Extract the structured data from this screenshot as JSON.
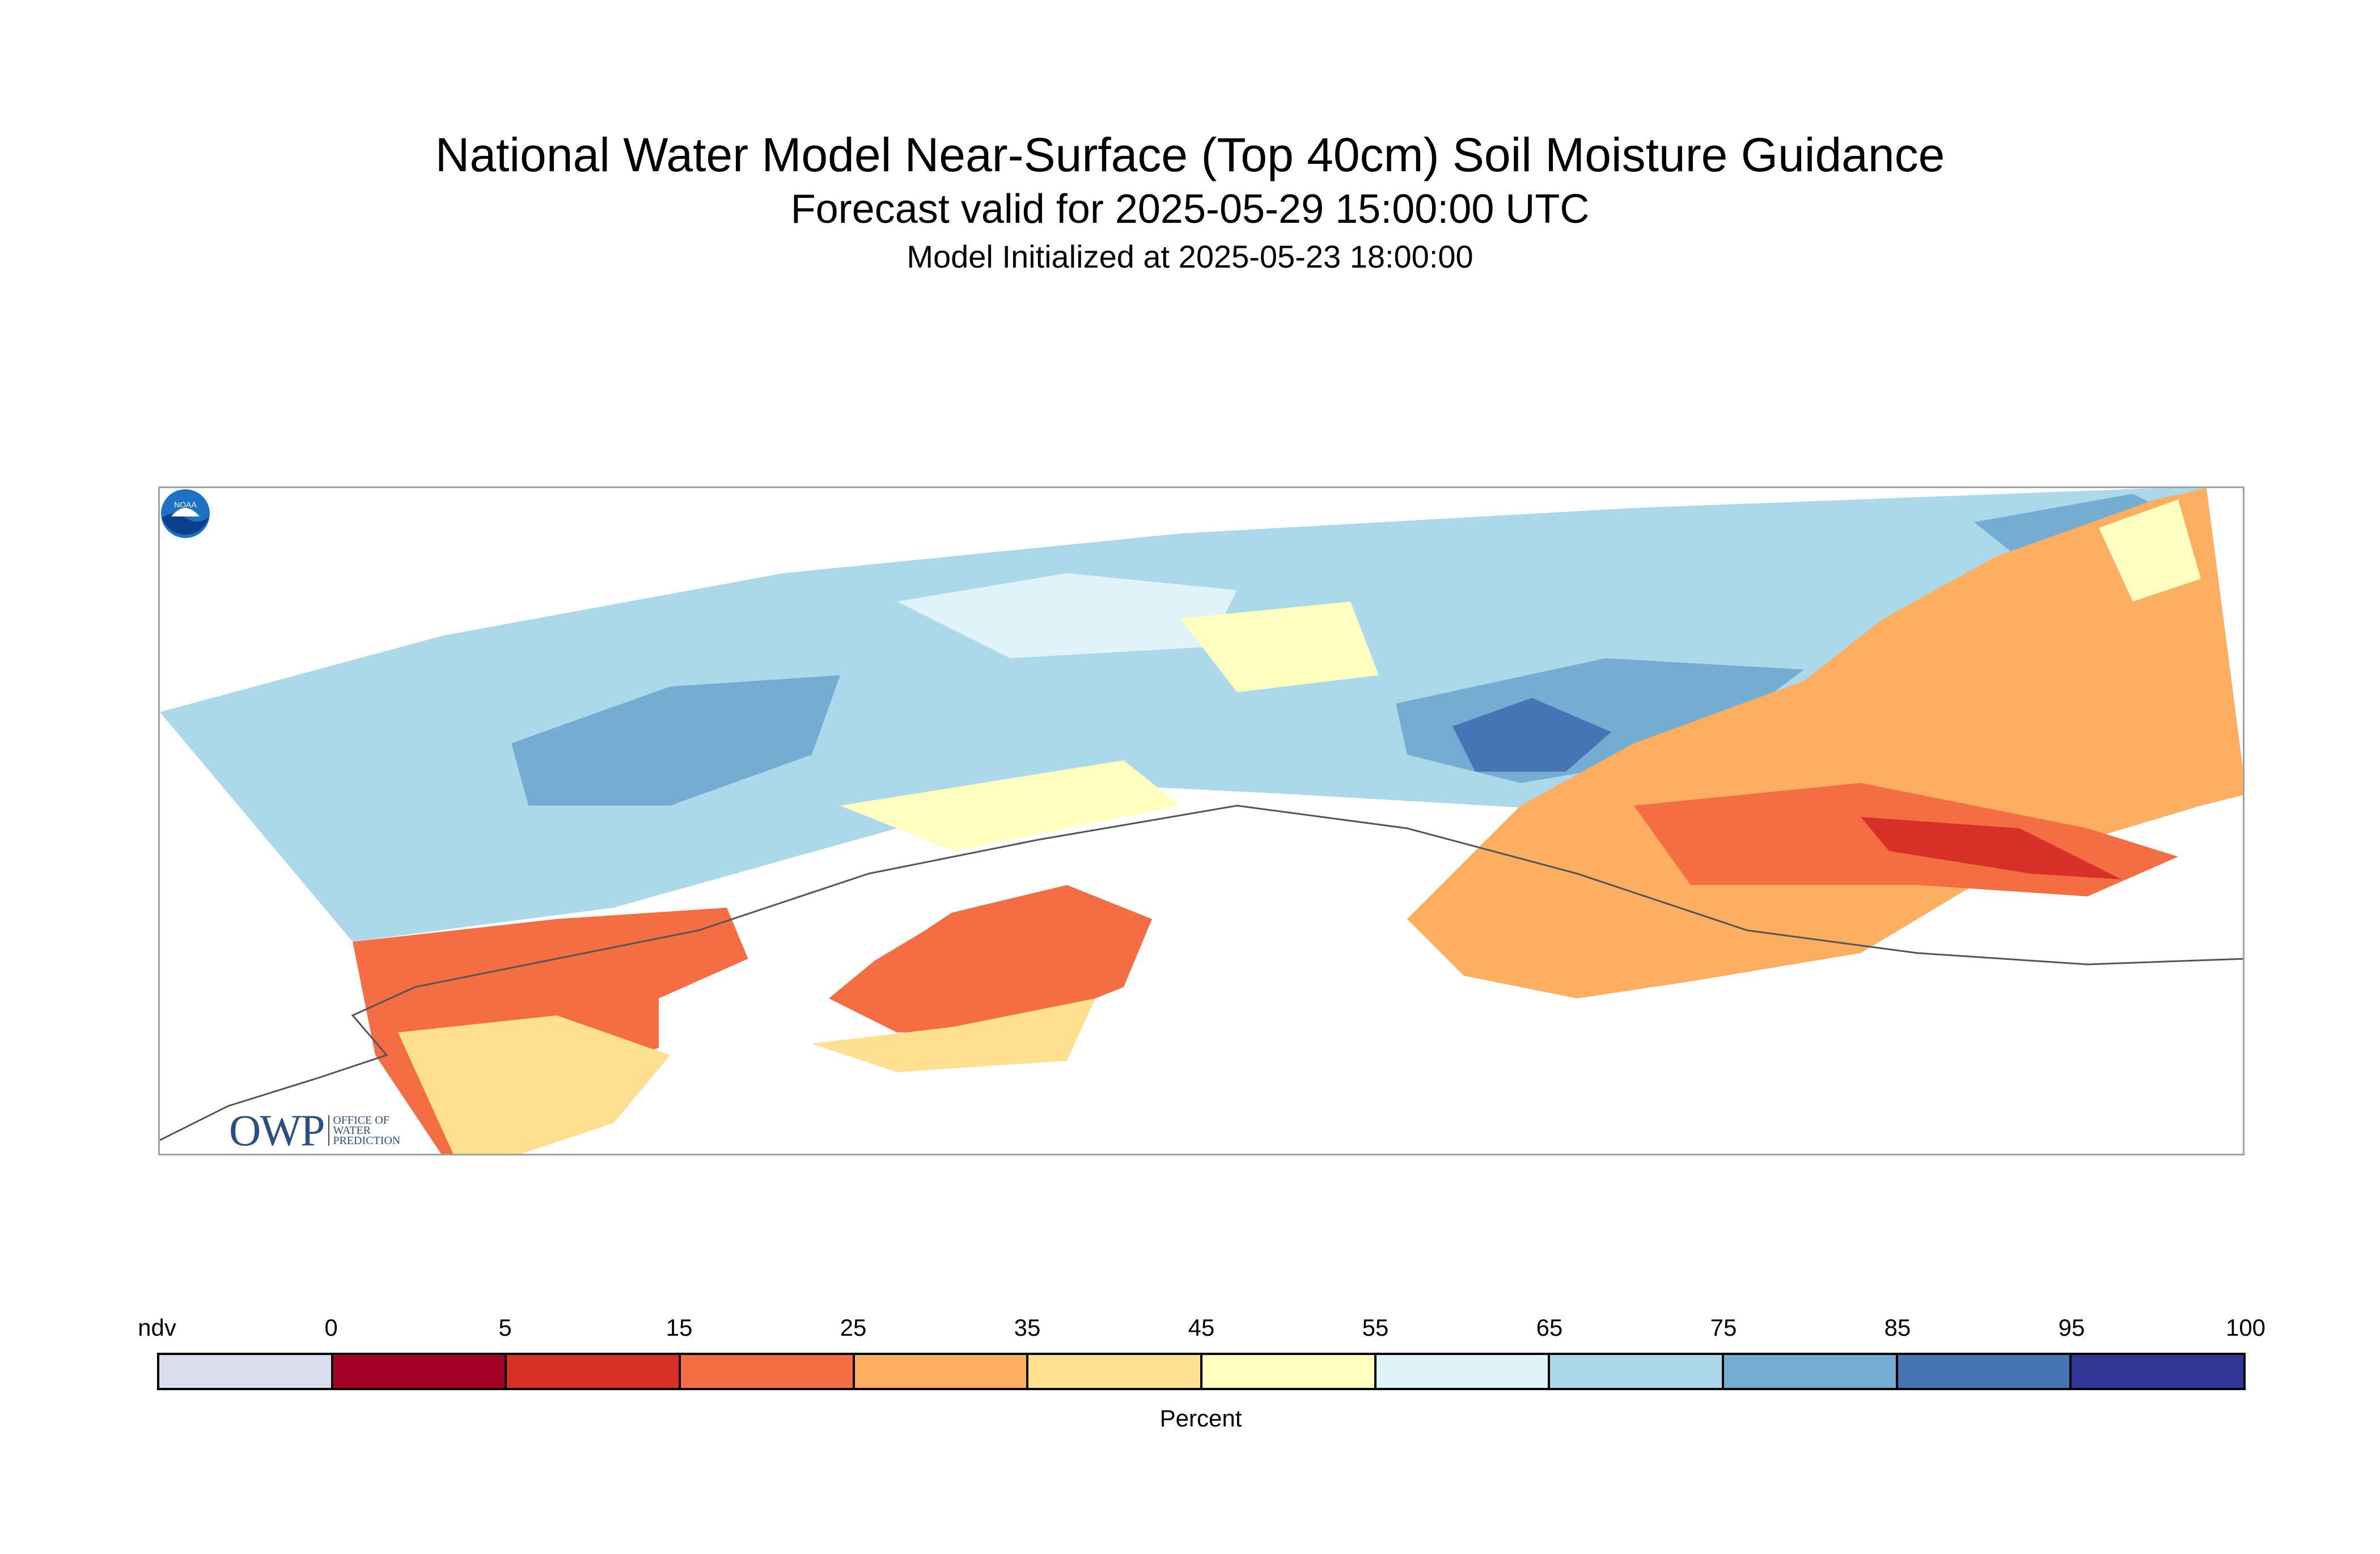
{
  "title": "National Water Model Near-Surface (Top 40cm) Soil Moisture Guidance",
  "subtitle": "Forecast valid for 2025-05-29 15:00:00 UTC",
  "init_line": "Model Initialized at 2025-05-23 18:00:00",
  "logos": {
    "owp_mark": "OWP",
    "owp_text": "OFFICE OF\nWATER\nPREDICTION",
    "noaa_text": "NOAA"
  },
  "colorbar": {
    "label": "Percent",
    "ticks": [
      "ndv",
      "0",
      "5",
      "15",
      "25",
      "35",
      "45",
      "55",
      "65",
      "75",
      "85",
      "95",
      "100"
    ],
    "colors": [
      "#dcdcef",
      "#a50026",
      "#d73027",
      "#f46d43",
      "#fdae61",
      "#fee090",
      "#ffffbf",
      "#e0f3f8",
      "#abd9e9",
      "#74add1",
      "#4575b4",
      "#313695"
    ]
  }
}
